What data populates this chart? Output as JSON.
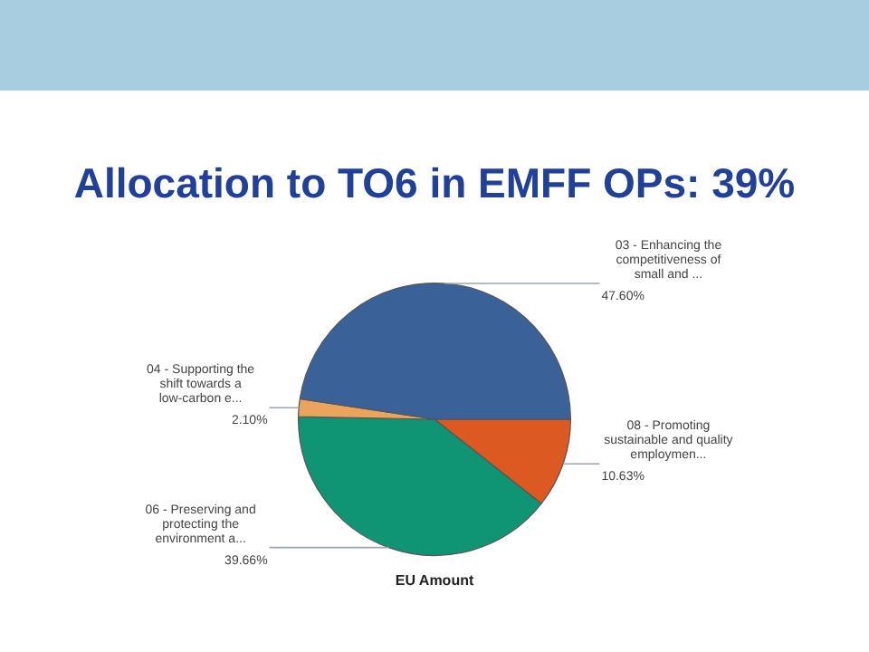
{
  "chart_data": {
    "type": "pie",
    "title": "Allocation to TO6 in EMFF OPs: 39%",
    "xlabel": "EU Amount",
    "categories": [
      "03 - Enhancing the competitiveness of small and ...",
      "04 - Supporting the shift towards a low-carbon e...",
      "06 - Preserving and protecting the environment a...",
      "08 - Promoting sustainable and quality employmen..."
    ],
    "values": [
      47.6,
      2.1,
      39.66,
      10.63
    ],
    "value_labels": [
      "47.60%",
      "2.10%",
      "39.66%",
      "10.63%"
    ],
    "colors": [
      "#3b6298",
      "#eba45c",
      "#0f9573",
      "#dc5a22"
    ],
    "legend": false
  }
}
